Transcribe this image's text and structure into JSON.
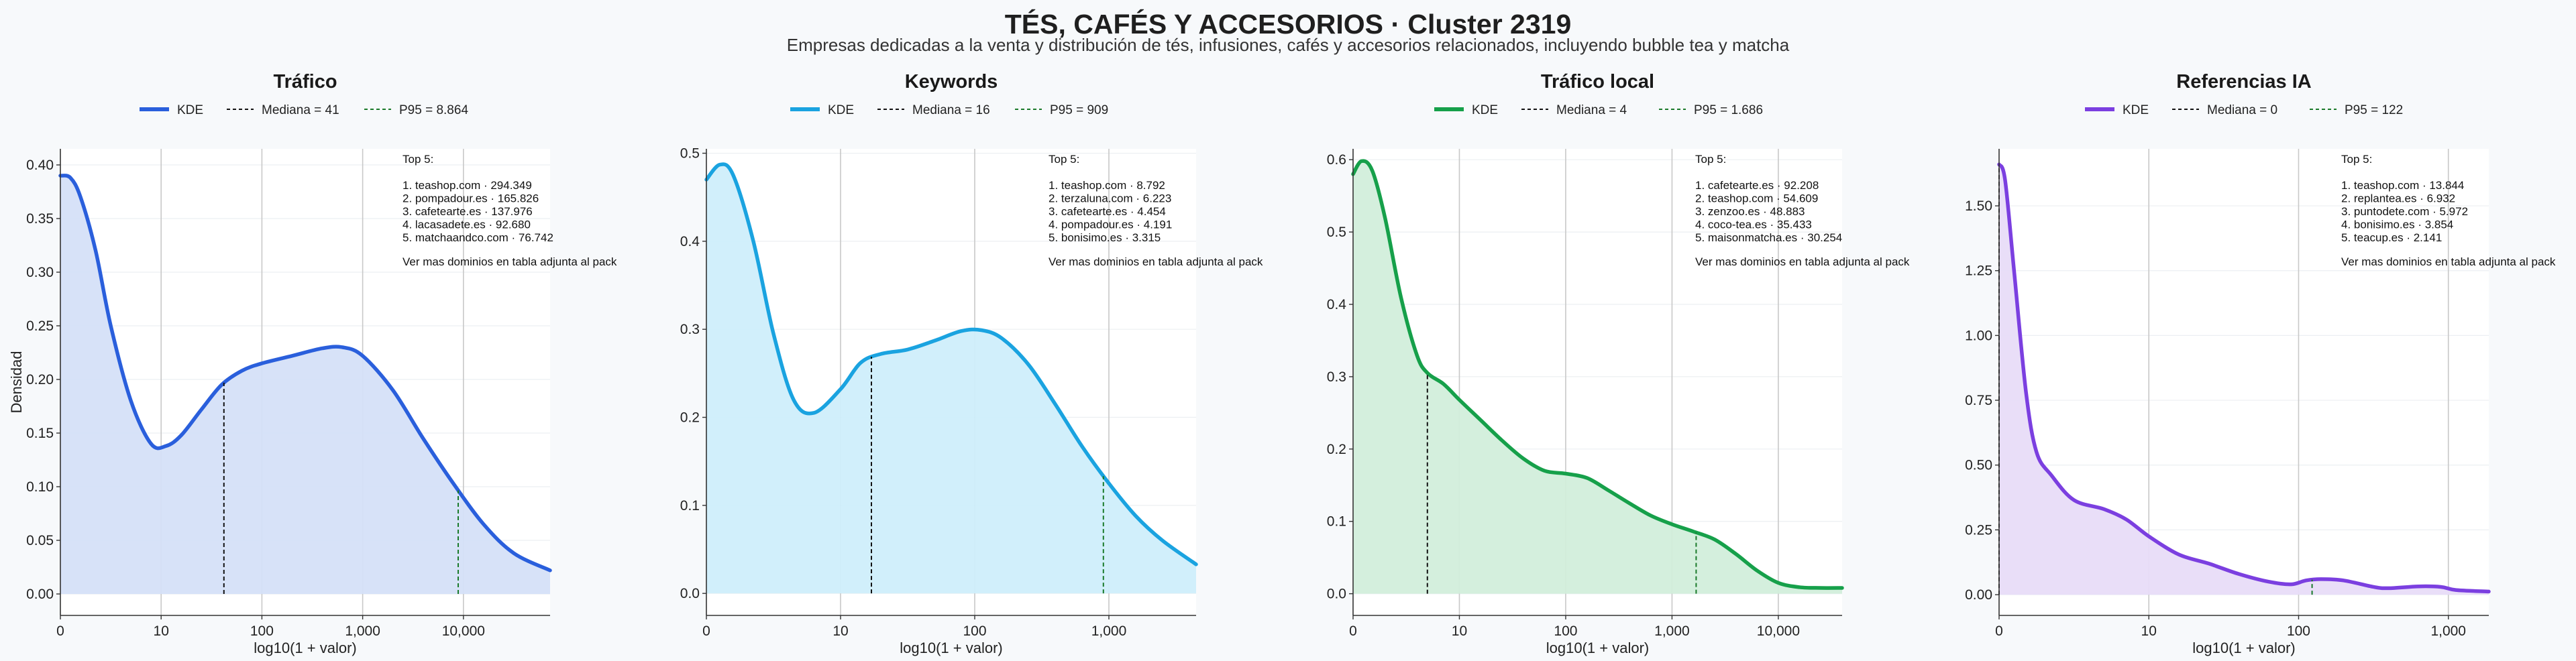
{
  "figure": {
    "title": "TÉS, CAFÉS Y ACCESORIOS · Cluster 2319",
    "subtitle": "Empresas dedicadas a la venta y distribución de tés, infusiones, cafés y accesorios relacionados, incluyendo bubble tea y matcha"
  },
  "chart_data": [
    {
      "type": "area",
      "title": "Tráfico",
      "xlabel": "log10(1 + valor)",
      "ylabel": "Densidad",
      "color": "#2a5fdc",
      "fill": "#d5e0f8",
      "xlim": [
        0,
        4.86
      ],
      "ylim": [
        -0.02,
        0.415
      ],
      "xticks": [
        {
          "v": 0,
          "label": "0"
        },
        {
          "v": 1,
          "label": "10"
        },
        {
          "v": 2,
          "label": "100"
        },
        {
          "v": 3,
          "label": "1,000"
        },
        {
          "v": 4,
          "label": "10,000"
        }
      ],
      "yticks": [
        {
          "v": 0,
          "label": "0.00"
        },
        {
          "v": 0.05,
          "label": "0.05"
        },
        {
          "v": 0.1,
          "label": "0.10"
        },
        {
          "v": 0.15,
          "label": "0.15"
        },
        {
          "v": 0.2,
          "label": "0.20"
        },
        {
          "v": 0.25,
          "label": "0.25"
        },
        {
          "v": 0.3,
          "label": "0.30"
        },
        {
          "v": 0.35,
          "label": "0.35"
        },
        {
          "v": 0.4,
          "label": "0.40"
        }
      ],
      "x": [
        0,
        0.1,
        0.2,
        0.35,
        0.5,
        0.7,
        0.9,
        1.05,
        1.2,
        1.4,
        1.6,
        1.8,
        2.0,
        2.3,
        2.6,
        2.8,
        3.0,
        3.3,
        3.6,
        3.9,
        4.2,
        4.5,
        4.86
      ],
      "y": [
        0.39,
        0.388,
        0.37,
        0.32,
        0.25,
        0.18,
        0.14,
        0.138,
        0.148,
        0.172,
        0.195,
        0.208,
        0.215,
        0.222,
        0.229,
        0.23,
        0.222,
        0.19,
        0.145,
        0.103,
        0.065,
        0.038,
        0.022
      ],
      "legend": {
        "kde": "KDE",
        "median": "Mediana = 41",
        "p95": "P95 = 8.864"
      },
      "median_x": 1.623,
      "p95_x": 3.948,
      "top5": {
        "heading": "Top 5:",
        "items": [
          "1. teashop.com · 294.349",
          "2. pompadour.es · 165.826",
          "3. cafetearte.es · 137.976",
          "4. lacasadete.es · 92.680",
          "5. matchaandco.com · 76.742"
        ],
        "footer": "Ver mas dominios en tabla adjunta al pack"
      }
    },
    {
      "type": "area",
      "title": "Keywords",
      "xlabel": "log10(1 + valor)",
      "ylabel": "",
      "color": "#1aa3e0",
      "fill": "#cfeefb",
      "xlim": [
        0,
        3.65
      ],
      "ylim": [
        -0.025,
        0.505
      ],
      "xticks": [
        {
          "v": 0,
          "label": "0"
        },
        {
          "v": 1,
          "label": "10"
        },
        {
          "v": 2,
          "label": "100"
        },
        {
          "v": 3,
          "label": "1,000"
        }
      ],
      "yticks": [
        {
          "v": 0,
          "label": "0.0"
        },
        {
          "v": 0.1,
          "label": "0.1"
        },
        {
          "v": 0.2,
          "label": "0.2"
        },
        {
          "v": 0.3,
          "label": "0.3"
        },
        {
          "v": 0.4,
          "label": "0.4"
        },
        {
          "v": 0.5,
          "label": "0.5"
        }
      ],
      "x": [
        0,
        0.1,
        0.2,
        0.35,
        0.5,
        0.65,
        0.8,
        1.0,
        1.15,
        1.3,
        1.5,
        1.7,
        1.9,
        2.05,
        2.2,
        2.4,
        2.6,
        2.8,
        3.0,
        3.2,
        3.4,
        3.65
      ],
      "y": [
        0.47,
        0.487,
        0.475,
        0.4,
        0.295,
        0.22,
        0.205,
        0.232,
        0.262,
        0.272,
        0.277,
        0.287,
        0.298,
        0.299,
        0.29,
        0.26,
        0.215,
        0.167,
        0.125,
        0.088,
        0.06,
        0.033
      ],
      "legend": {
        "kde": "KDE",
        "median": "Mediana = 16",
        "p95": "P95 = 909"
      },
      "median_x": 1.23,
      "p95_x": 2.959,
      "top5": {
        "heading": "Top 5:",
        "items": [
          "1. teashop.com · 8.792",
          "2. terzaluna.com · 6.223",
          "3. cafetearte.es · 4.454",
          "4. pompadour.es · 4.191",
          "5. bonisimo.es · 3.315"
        ],
        "footer": "Ver mas dominios en tabla adjunta al pack"
      }
    },
    {
      "type": "area",
      "title": "Tráfico local",
      "xlabel": "log10(1 + valor)",
      "ylabel": "",
      "color": "#16a04a",
      "fill": "#d2eedb",
      "xlim": [
        0,
        4.6
      ],
      "ylim": [
        -0.03,
        0.615
      ],
      "xticks": [
        {
          "v": 0,
          "label": "0"
        },
        {
          "v": 1,
          "label": "10"
        },
        {
          "v": 2,
          "label": "100"
        },
        {
          "v": 3,
          "label": "1,000"
        },
        {
          "v": 4,
          "label": "10,000"
        }
      ],
      "yticks": [
        {
          "v": 0,
          "label": "0.0"
        },
        {
          "v": 0.1,
          "label": "0.1"
        },
        {
          "v": 0.2,
          "label": "0.2"
        },
        {
          "v": 0.3,
          "label": "0.3"
        },
        {
          "v": 0.4,
          "label": "0.4"
        },
        {
          "v": 0.5,
          "label": "0.5"
        },
        {
          "v": 0.6,
          "label": "0.6"
        }
      ],
      "x": [
        0,
        0.08,
        0.18,
        0.3,
        0.45,
        0.6,
        0.7,
        0.85,
        1.0,
        1.2,
        1.4,
        1.6,
        1.8,
        2.0,
        2.2,
        2.4,
        2.6,
        2.8,
        3.0,
        3.2,
        3.4,
        3.6,
        3.8,
        4.0,
        4.2,
        4.4,
        4.6
      ],
      "y": [
        0.58,
        0.598,
        0.585,
        0.52,
        0.41,
        0.33,
        0.305,
        0.29,
        0.268,
        0.24,
        0.212,
        0.187,
        0.17,
        0.166,
        0.16,
        0.143,
        0.125,
        0.108,
        0.096,
        0.086,
        0.075,
        0.055,
        0.032,
        0.015,
        0.009,
        0.008,
        0.008
      ],
      "legend": {
        "kde": "KDE",
        "median": "Mediana = 4",
        "p95": "P95 = 1.686"
      },
      "median_x": 0.699,
      "p95_x": 3.227,
      "top5": {
        "heading": "Top 5:",
        "items": [
          "1. cafetearte.es · 92.208",
          "2. teashop.com · 54.609",
          "3. zenzoo.es · 48.883",
          "4. coco-tea.es · 35.433",
          "5. maisonmatcha.es · 30.254"
        ],
        "footer": "Ver mas dominios en tabla adjunta al pack"
      }
    },
    {
      "type": "area",
      "title": "Referencias IA",
      "xlabel": "log10(1 + valor)",
      "ylabel": "",
      "color": "#7b3fe0",
      "fill": "#e8dcf8",
      "xlim": [
        0,
        3.27
      ],
      "ylim": [
        -0.08,
        1.72
      ],
      "xticks": [
        {
          "v": 0,
          "label": "0"
        },
        {
          "v": 1,
          "label": "10"
        },
        {
          "v": 2,
          "label": "100"
        },
        {
          "v": 3,
          "label": "1,000"
        }
      ],
      "yticks": [
        {
          "v": 0,
          "label": "0.00"
        },
        {
          "v": 0.25,
          "label": "0.25"
        },
        {
          "v": 0.5,
          "label": "0.50"
        },
        {
          "v": 0.75,
          "label": "0.75"
        },
        {
          "v": 1.0,
          "label": "1.00"
        },
        {
          "v": 1.25,
          "label": "1.25"
        },
        {
          "v": 1.5,
          "label": "1.50"
        }
      ],
      "x": [
        0,
        0.04,
        0.1,
        0.18,
        0.25,
        0.35,
        0.5,
        0.7,
        0.85,
        1.0,
        1.2,
        1.4,
        1.6,
        1.8,
        1.95,
        2.05,
        2.15,
        2.3,
        2.5,
        2.6,
        2.8,
        2.95,
        3.05,
        3.27
      ],
      "y": [
        1.66,
        1.6,
        1.25,
        0.78,
        0.55,
        0.46,
        0.365,
        0.33,
        0.29,
        0.225,
        0.155,
        0.12,
        0.08,
        0.05,
        0.04,
        0.055,
        0.06,
        0.055,
        0.03,
        0.025,
        0.032,
        0.03,
        0.018,
        0.012
      ],
      "legend": {
        "kde": "KDE",
        "median": "Mediana = 0",
        "p95": "P95 = 122"
      },
      "median_x": 0,
      "p95_x": 2.09,
      "top5": {
        "heading": "Top 5:",
        "items": [
          "1. teashop.com · 13.844",
          "2. replantea.es · 6.932",
          "3. puntodete.com · 5.972",
          "4. bonisimo.es · 3.854",
          "5. teacup.es · 2.141"
        ],
        "footer": "Ver mas dominios en tabla adjunta al pack"
      }
    }
  ]
}
